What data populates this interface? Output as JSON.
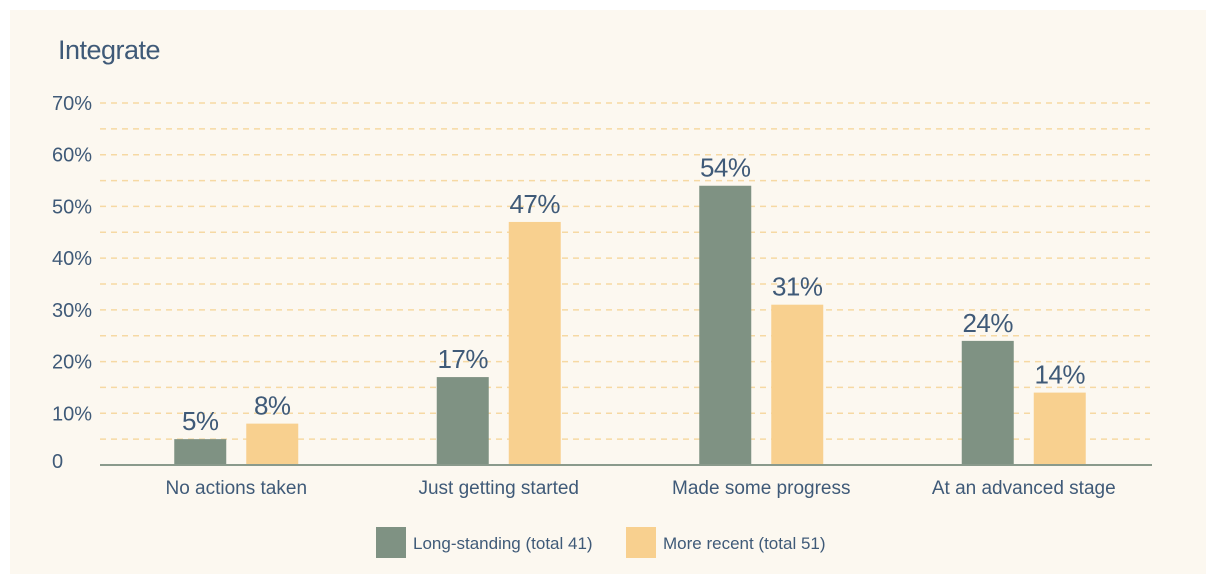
{
  "chart_data": {
    "type": "bar",
    "title": "Integrate",
    "categories": [
      "No actions taken",
      "Just getting started",
      "Made some progress",
      "At an advanced stage"
    ],
    "series": [
      {
        "name": "Long-standing (total 41)",
        "values": [
          5,
          17,
          54,
          24
        ],
        "labels": [
          "5%",
          "17%",
          "54%",
          "24%"
        ],
        "color": "#7f9283"
      },
      {
        "name": "More recent (total 51)",
        "values": [
          8,
          47,
          31,
          14
        ],
        "labels": [
          "8%",
          "47%",
          "31%",
          "14%"
        ],
        "color": "#f8d08f"
      }
    ],
    "yticks": [
      {
        "value": 0,
        "label": "0"
      },
      {
        "value": 10,
        "label": "10%"
      },
      {
        "value": 20,
        "label": "20%"
      },
      {
        "value": 30,
        "label": "30%"
      },
      {
        "value": 40,
        "label": "40%"
      },
      {
        "value": 50,
        "label": "50%"
      },
      {
        "value": 60,
        "label": "60%"
      },
      {
        "value": 70,
        "label": "70%"
      }
    ],
    "ylim": [
      0,
      70
    ],
    "grid": true,
    "grid_color": "#f6d9a3",
    "axis_color": "#8a9a8c",
    "text_color": "#3f5a78",
    "legend_position": "bottom-center"
  }
}
